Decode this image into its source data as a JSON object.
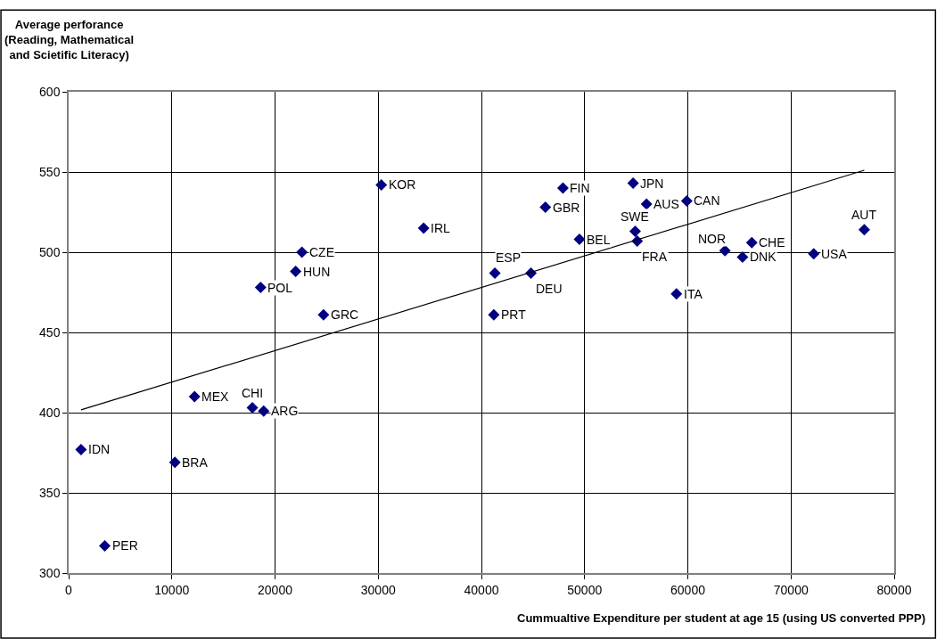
{
  "chart_data": {
    "type": "scatter",
    "ylabel": "Average perforance\n(Reading, Mathematical\nand Scietific Literacy)",
    "xlabel": "Cummualtive Expenditure per student at age 15 (using US converted PPP)",
    "xlim": [
      0,
      80000
    ],
    "xticks": [
      0,
      10000,
      20000,
      30000,
      40000,
      50000,
      60000,
      70000,
      80000
    ],
    "ylim": [
      300,
      600
    ],
    "yticks": [
      300,
      350,
      400,
      450,
      500,
      550,
      600
    ],
    "grid": true,
    "series": [
      {
        "color": "#000080",
        "marker": "diamond",
        "x": [
          30300,
          34400,
          22600,
          22000,
          18600,
          24700,
          12200,
          17800,
          18900,
          1200,
          10300,
          3500,
          47900,
          54700,
          46200,
          56000,
          59900,
          49500,
          54900,
          55100,
          63600,
          66200,
          65300,
          72200,
          77100,
          41300,
          44800,
          58900,
          41200
        ],
        "values": [
          542,
          515,
          500,
          488,
          478,
          461,
          410,
          403,
          401,
          377,
          369,
          317,
          540,
          543,
          528,
          530,
          532,
          508,
          513,
          507,
          501,
          506,
          497,
          499,
          514,
          487,
          487,
          474,
          461
        ],
        "value_labels": [
          "KOR",
          "IRL",
          "CZE",
          "HUN",
          "POL",
          "GRC",
          "MEX",
          "CHI",
          "ARG",
          "IDN",
          "BRA",
          "PER",
          "FIN",
          "JPN",
          "GBR",
          "AUS",
          "CAN",
          "BEL",
          "SWE",
          "FRA",
          "NOR",
          "CHE",
          "DNK",
          "USA",
          "AUT",
          "ESP",
          "DEU",
          "ITA",
          "PRT"
        ]
      },
      {
        "type": "line",
        "color": "#000000",
        "marker": "none",
        "line_style": "solid",
        "x": [
          1200,
          77100
        ],
        "values": [
          401.7,
          551.1
        ]
      }
    ]
  }
}
